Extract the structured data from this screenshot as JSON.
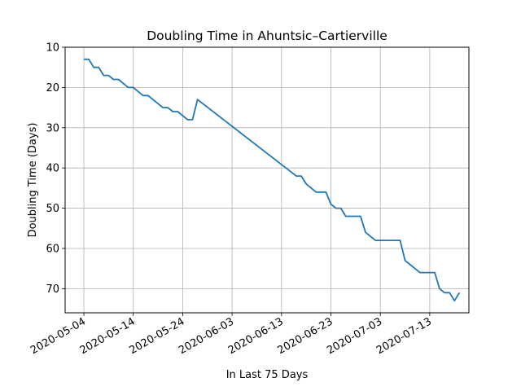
{
  "chart_data": {
    "type": "line",
    "title": "Doubling Time in  Ahuntsic–Cartierville",
    "xlabel": "In Last 75 Days",
    "ylabel": "Doubling Time (Days)",
    "x_range": [
      "2020-05-04",
      "2020-07-18"
    ],
    "ylim": [
      76,
      10
    ],
    "y_inverted": true,
    "grid": true,
    "x_ticks": [
      "2020-05-04",
      "2020-05-14",
      "2020-05-24",
      "2020-06-03",
      "2020-06-13",
      "2020-06-23",
      "2020-07-03",
      "2020-07-13"
    ],
    "y_ticks": [
      10,
      20,
      30,
      40,
      50,
      60,
      70
    ],
    "line_color": "#1f77b4",
    "series": [
      {
        "points": [
          [
            "2020-05-04",
            13
          ],
          [
            "2020-05-05",
            13
          ],
          [
            "2020-05-06",
            15
          ],
          [
            "2020-05-07",
            15
          ],
          [
            "2020-05-08",
            17
          ],
          [
            "2020-05-09",
            17
          ],
          [
            "2020-05-10",
            18
          ],
          [
            "2020-05-11",
            18
          ],
          [
            "2020-05-13",
            20
          ],
          [
            "2020-05-14",
            20
          ],
          [
            "2020-05-16",
            22
          ],
          [
            "2020-05-17",
            22
          ],
          [
            "2020-05-20",
            25
          ],
          [
            "2020-05-21",
            25
          ],
          [
            "2020-05-22",
            26
          ],
          [
            "2020-05-23",
            26
          ],
          [
            "2020-05-25",
            28
          ],
          [
            "2020-05-26",
            28
          ],
          [
            "2020-05-27",
            23
          ],
          [
            "2020-06-16",
            42
          ],
          [
            "2020-06-17",
            42
          ],
          [
            "2020-06-18",
            44
          ],
          [
            "2020-06-20",
            46
          ],
          [
            "2020-06-22",
            46
          ],
          [
            "2020-06-23",
            49
          ],
          [
            "2020-06-24",
            50
          ],
          [
            "2020-06-25",
            50
          ],
          [
            "2020-06-26",
            52
          ],
          [
            "2020-06-29",
            52
          ],
          [
            "2020-06-30",
            56
          ],
          [
            "2020-07-02",
            58
          ],
          [
            "2020-07-07",
            58
          ],
          [
            "2020-07-08",
            63
          ],
          [
            "2020-07-11",
            66
          ],
          [
            "2020-07-14",
            66
          ],
          [
            "2020-07-15",
            70
          ],
          [
            "2020-07-16",
            71
          ],
          [
            "2020-07-17",
            71
          ],
          [
            "2020-07-18",
            73
          ],
          [
            "2020-07-19",
            71
          ]
        ]
      }
    ]
  }
}
